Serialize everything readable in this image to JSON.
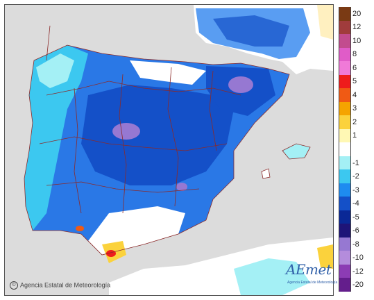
{
  "legend": {
    "items": [
      {
        "label": "20",
        "color": "#7a3a14"
      },
      {
        "label": "12",
        "color": "#a03c3c"
      },
      {
        "label": "10",
        "color": "#c24c8e"
      },
      {
        "label": "8",
        "color": "#e05cc8"
      },
      {
        "label": "6",
        "color": "#f07ad8"
      },
      {
        "label": "5",
        "color": "#ee1c1c"
      },
      {
        "label": "4",
        "color": "#f05a14"
      },
      {
        "label": "3",
        "color": "#f5a400"
      },
      {
        "label": "2",
        "color": "#fbd23c"
      },
      {
        "label": "1",
        "color": "#fff8b4"
      },
      {
        "label": "",
        "color": "#ffffff"
      },
      {
        "label": "-1",
        "color": "#a4f0f5"
      },
      {
        "label": "-2",
        "color": "#3cc8f0"
      },
      {
        "label": "-3",
        "color": "#1e8cf0"
      },
      {
        "label": "-4",
        "color": "#1450c8"
      },
      {
        "label": "-5",
        "color": "#0a2896"
      },
      {
        "label": "-6",
        "color": "#1e1478"
      },
      {
        "label": "-8",
        "color": "#9678d2"
      },
      {
        "label": "-10",
        "color": "#b48cdc"
      },
      {
        "label": "-12",
        "color": "#8c3cb4"
      },
      {
        "label": "-20",
        "color": "#641e8c"
      }
    ]
  },
  "credit": "Agencia Estatal de Meteorología",
  "logo": {
    "word": "AEmet",
    "subtitle": "Agencia Estatal de Meteorología"
  },
  "colors": {
    "sea": "#dcdcdc",
    "no_change": "#ffffff",
    "borders": "#8b2a2a"
  }
}
